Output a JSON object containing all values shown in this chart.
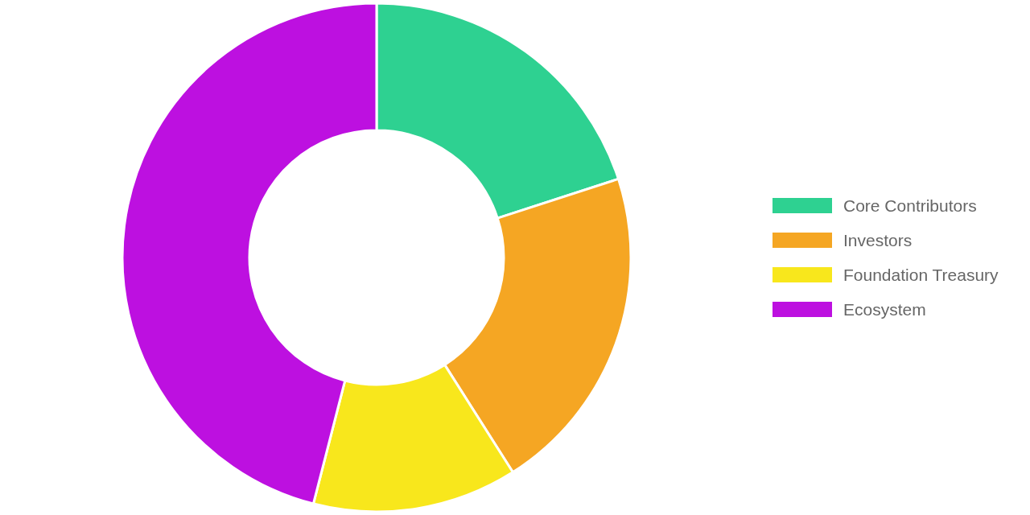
{
  "chart_data": {
    "type": "donut",
    "categories": [
      "Core Contributors",
      "Investors",
      "Foundation Treasury",
      "Ecosystem"
    ],
    "values": [
      20,
      21,
      13,
      46
    ],
    "colors": [
      "#2ed191",
      "#f5a623",
      "#f8e71c",
      "#bd10e0"
    ],
    "legend": "right"
  }
}
